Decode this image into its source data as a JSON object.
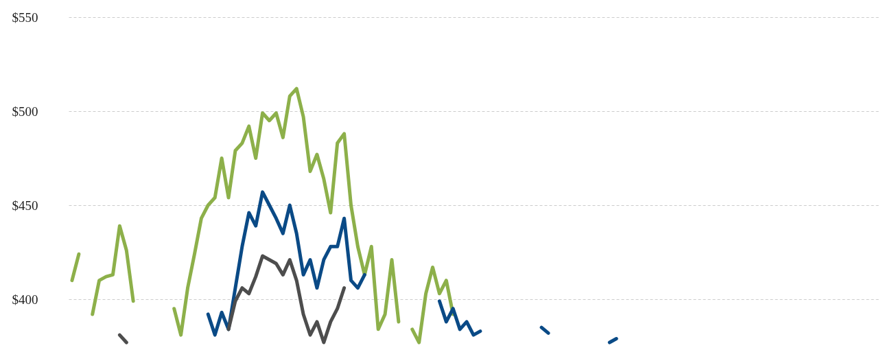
{
  "chart_data": {
    "type": "line",
    "categories": [
      null,
      null,
      null,
      null,
      null,
      null,
      null,
      null,
      null,
      null,
      null,
      null,
      null,
      null,
      null,
      null,
      null,
      null,
      null,
      null,
      null,
      null,
      null,
      null,
      null,
      null,
      null,
      null,
      null,
      null,
      null,
      null,
      null,
      null,
      null,
      null,
      null,
      null,
      null,
      null,
      null,
      null,
      null,
      null,
      null,
      null,
      null,
      null,
      null,
      null,
      null,
      null,
      null,
      null,
      null,
      null,
      null,
      null,
      null,
      null,
      null,
      null,
      null,
      null,
      null,
      null,
      null,
      null,
      null,
      null,
      null,
      null,
      null,
      null,
      null,
      null,
      null,
      null,
      null,
      null,
      null,
      null,
      null,
      null,
      null,
      null,
      null,
      null,
      null,
      null,
      null,
      null,
      null,
      null,
      null,
      null,
      null,
      null,
      null,
      null,
      null,
      null,
      null,
      null,
      null,
      null,
      null,
      null,
      null,
      null,
      null,
      null,
      null,
      null,
      null,
      null,
      null,
      null,
      null
    ],
    "series": [
      {
        "color": "#8db04a",
        "values": [
          410,
          424,
          null,
          392,
          410,
          412,
          413,
          439,
          426,
          399,
          null,
          null,
          null,
          null,
          null,
          395,
          381,
          406,
          424,
          443,
          450,
          454,
          475,
          454,
          479,
          483,
          492,
          475,
          499,
          495,
          499,
          486,
          508,
          512,
          497,
          468,
          477,
          464,
          446,
          483,
          488,
          450,
          428,
          413,
          428,
          384,
          392,
          421,
          388,
          null,
          384,
          377,
          403,
          417,
          403,
          410,
          392,
          null,
          null,
          null,
          null,
          null,
          null,
          null,
          null,
          null,
          null,
          null,
          null,
          null,
          null,
          null,
          null,
          null,
          null,
          null,
          null,
          null,
          null,
          null,
          null,
          null,
          null,
          null,
          null,
          null,
          null,
          null,
          null,
          null,
          null,
          null,
          null,
          null,
          null,
          null,
          null,
          null,
          null,
          null,
          null,
          null,
          null,
          null,
          null,
          null,
          null,
          null,
          null,
          null,
          null,
          null,
          null,
          null,
          null,
          null,
          null,
          null,
          null
        ]
      },
      {
        "color": "#0a4a86",
        "values": [
          null,
          null,
          null,
          null,
          null,
          null,
          null,
          null,
          null,
          null,
          null,
          null,
          null,
          null,
          null,
          null,
          null,
          null,
          null,
          null,
          392,
          381,
          393,
          384,
          406,
          428,
          446,
          439,
          457,
          450,
          443,
          435,
          450,
          435,
          413,
          421,
          406,
          421,
          428,
          428,
          443,
          410,
          406,
          413,
          null,
          null,
          null,
          null,
          null,
          null,
          null,
          null,
          null,
          null,
          399,
          388,
          395,
          384,
          388,
          381,
          383,
          null,
          null,
          null,
          null,
          null,
          null,
          null,
          null,
          385,
          382,
          null,
          null,
          null,
          null,
          null,
          null,
          null,
          null,
          377,
          379,
          null,
          null,
          null,
          null,
          null,
          null,
          null,
          null,
          null,
          null,
          null,
          null,
          null,
          null,
          null,
          null,
          null,
          null,
          null,
          null,
          null,
          null,
          null,
          null,
          null,
          null,
          null,
          null,
          null,
          null,
          null,
          null,
          null,
          null,
          null,
          null,
          null,
          null
        ]
      },
      {
        "color": "#4d4d4d",
        "values": [
          null,
          null,
          null,
          null,
          null,
          null,
          null,
          381,
          377,
          null,
          null,
          null,
          null,
          null,
          null,
          null,
          null,
          null,
          null,
          null,
          null,
          null,
          null,
          384,
          399,
          406,
          403,
          412,
          423,
          421,
          419,
          413,
          421,
          410,
          392,
          381,
          388,
          377,
          388,
          395,
          406,
          null,
          null,
          null,
          null,
          null,
          null,
          null,
          null,
          null,
          null,
          null,
          null,
          null,
          null,
          null,
          null,
          null,
          null,
          null,
          null,
          null,
          null,
          null,
          null,
          null,
          null,
          null,
          null,
          null,
          null,
          null,
          null,
          null,
          null,
          null,
          null,
          null,
          null,
          null,
          null,
          null,
          null,
          null,
          null,
          null,
          null,
          null,
          null,
          null,
          null,
          null,
          null,
          null,
          null,
          null,
          null,
          null,
          null,
          null,
          null,
          null,
          null,
          null,
          null,
          null,
          null,
          null,
          null,
          null,
          null,
          null,
          null,
          null,
          null,
          null,
          null,
          null,
          null
        ]
      }
    ],
    "ylim": [
      373,
      550
    ],
    "yticks": [
      {
        "value": 400,
        "label": "$400"
      },
      {
        "value": 450,
        "label": "$450"
      },
      {
        "value": 500,
        "label": "$500"
      },
      {
        "value": 550,
        "label": "$550"
      }
    ],
    "grid": "y",
    "legend": false,
    "line_style": "solid",
    "marker": "none",
    "tick_labels": "y"
  }
}
